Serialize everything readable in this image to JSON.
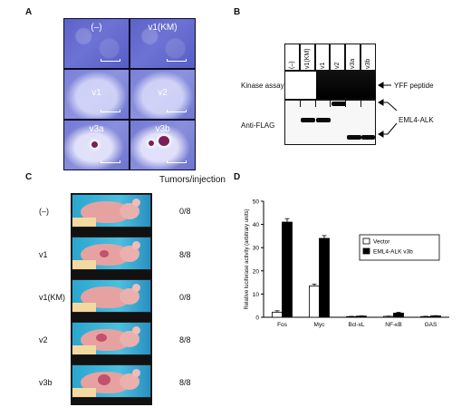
{
  "panels": {
    "a": "A",
    "b": "B",
    "c": "C",
    "d": "D"
  },
  "panel_a": {
    "tiles": [
      "(–)",
      "v1(KM)",
      "v1",
      "v2",
      "v3a",
      "v3b"
    ]
  },
  "panel_b": {
    "lanes": [
      "(–)",
      "v1(KM)",
      "v1",
      "v2",
      "v3a",
      "v3b"
    ],
    "row_kinase": "Kinase assay",
    "row_flag": "Anti-FLAG",
    "right_peptide": "YFF peptide",
    "right_fusion": "EML4-ALK"
  },
  "panel_c": {
    "header": "Tumors/injection",
    "rows": [
      {
        "label": "(–)",
        "value": "0/8"
      },
      {
        "label": "v1",
        "value": "8/8"
      },
      {
        "label": "v1(KM)",
        "value": "0/8"
      },
      {
        "label": "v2",
        "value": "8/8"
      },
      {
        "label": "v3b",
        "value": "8/8"
      }
    ]
  },
  "chart_data": {
    "type": "bar",
    "ylabel": "Relative luciferase activity (arbitrary units)",
    "xlabel": "",
    "ylim": [
      0,
      50
    ],
    "yticks": [
      0,
      10,
      20,
      30,
      40,
      50
    ],
    "categories": [
      "Fos",
      "Myc",
      "Bcl-xL",
      "NF-κB",
      "GAS"
    ],
    "series": [
      {
        "name": "Vector",
        "values": [
          2.2,
          13.5,
          0.3,
          0.4,
          0.3
        ],
        "errors": [
          0.6,
          0.8,
          0.1,
          0.1,
          0.1
        ],
        "color": "#ffffff"
      },
      {
        "name": "EML4-ALK v3b",
        "values": [
          41,
          34,
          0.5,
          1.8,
          0.6
        ],
        "errors": [
          1.5,
          1.2,
          0.1,
          0.3,
          0.1
        ],
        "color": "#000000"
      }
    ],
    "legend": "top-right"
  }
}
